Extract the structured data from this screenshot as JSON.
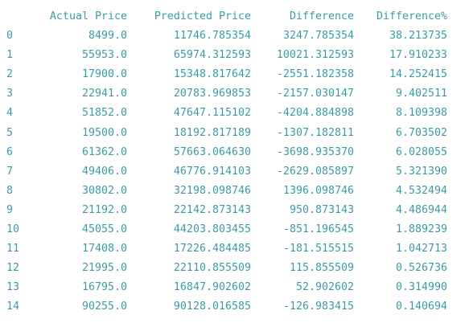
{
  "table": {
    "columns": [
      "Actual Price",
      "Predicted Price",
      "Difference",
      "Difference%"
    ],
    "rows": [
      {
        "index": "0",
        "cells": [
          "8499.0",
          "11746.785354",
          "3247.785354",
          "38.213735"
        ]
      },
      {
        "index": "1",
        "cells": [
          "55953.0",
          "65974.312593",
          "10021.312593",
          "17.910233"
        ]
      },
      {
        "index": "2",
        "cells": [
          "17900.0",
          "15348.817642",
          "-2551.182358",
          "14.252415"
        ]
      },
      {
        "index": "3",
        "cells": [
          "22941.0",
          "20783.969853",
          "-2157.030147",
          "9.402511"
        ]
      },
      {
        "index": "4",
        "cells": [
          "51852.0",
          "47647.115102",
          "-4204.884898",
          "8.109398"
        ]
      },
      {
        "index": "5",
        "cells": [
          "19500.0",
          "18192.817189",
          "-1307.182811",
          "6.703502"
        ]
      },
      {
        "index": "6",
        "cells": [
          "61362.0",
          "57663.064630",
          "-3698.935370",
          "6.028055"
        ]
      },
      {
        "index": "7",
        "cells": [
          "49406.0",
          "46776.914103",
          "-2629.085897",
          "5.321390"
        ]
      },
      {
        "index": "8",
        "cells": [
          "30802.0",
          "32198.098746",
          "1396.098746",
          "4.532494"
        ]
      },
      {
        "index": "9",
        "cells": [
          "21192.0",
          "22142.873143",
          "950.873143",
          "4.486944"
        ]
      },
      {
        "index": "10",
        "cells": [
          "45055.0",
          "44203.803455",
          "-851.196545",
          "1.889239"
        ]
      },
      {
        "index": "11",
        "cells": [
          "17408.0",
          "17226.484485",
          "-181.515515",
          "1.042713"
        ]
      },
      {
        "index": "12",
        "cells": [
          "21995.0",
          "22110.855509",
          "115.855509",
          "0.526736"
        ]
      },
      {
        "index": "13",
        "cells": [
          "16795.0",
          "16847.902602",
          "52.902602",
          "0.314990"
        ]
      },
      {
        "index": "14",
        "cells": [
          "90255.0",
          "90128.016585",
          "-126.983415",
          "0.140694"
        ]
      }
    ]
  },
  "colors": {
    "text": "#3a9ba6",
    "background": "#ffffff"
  }
}
